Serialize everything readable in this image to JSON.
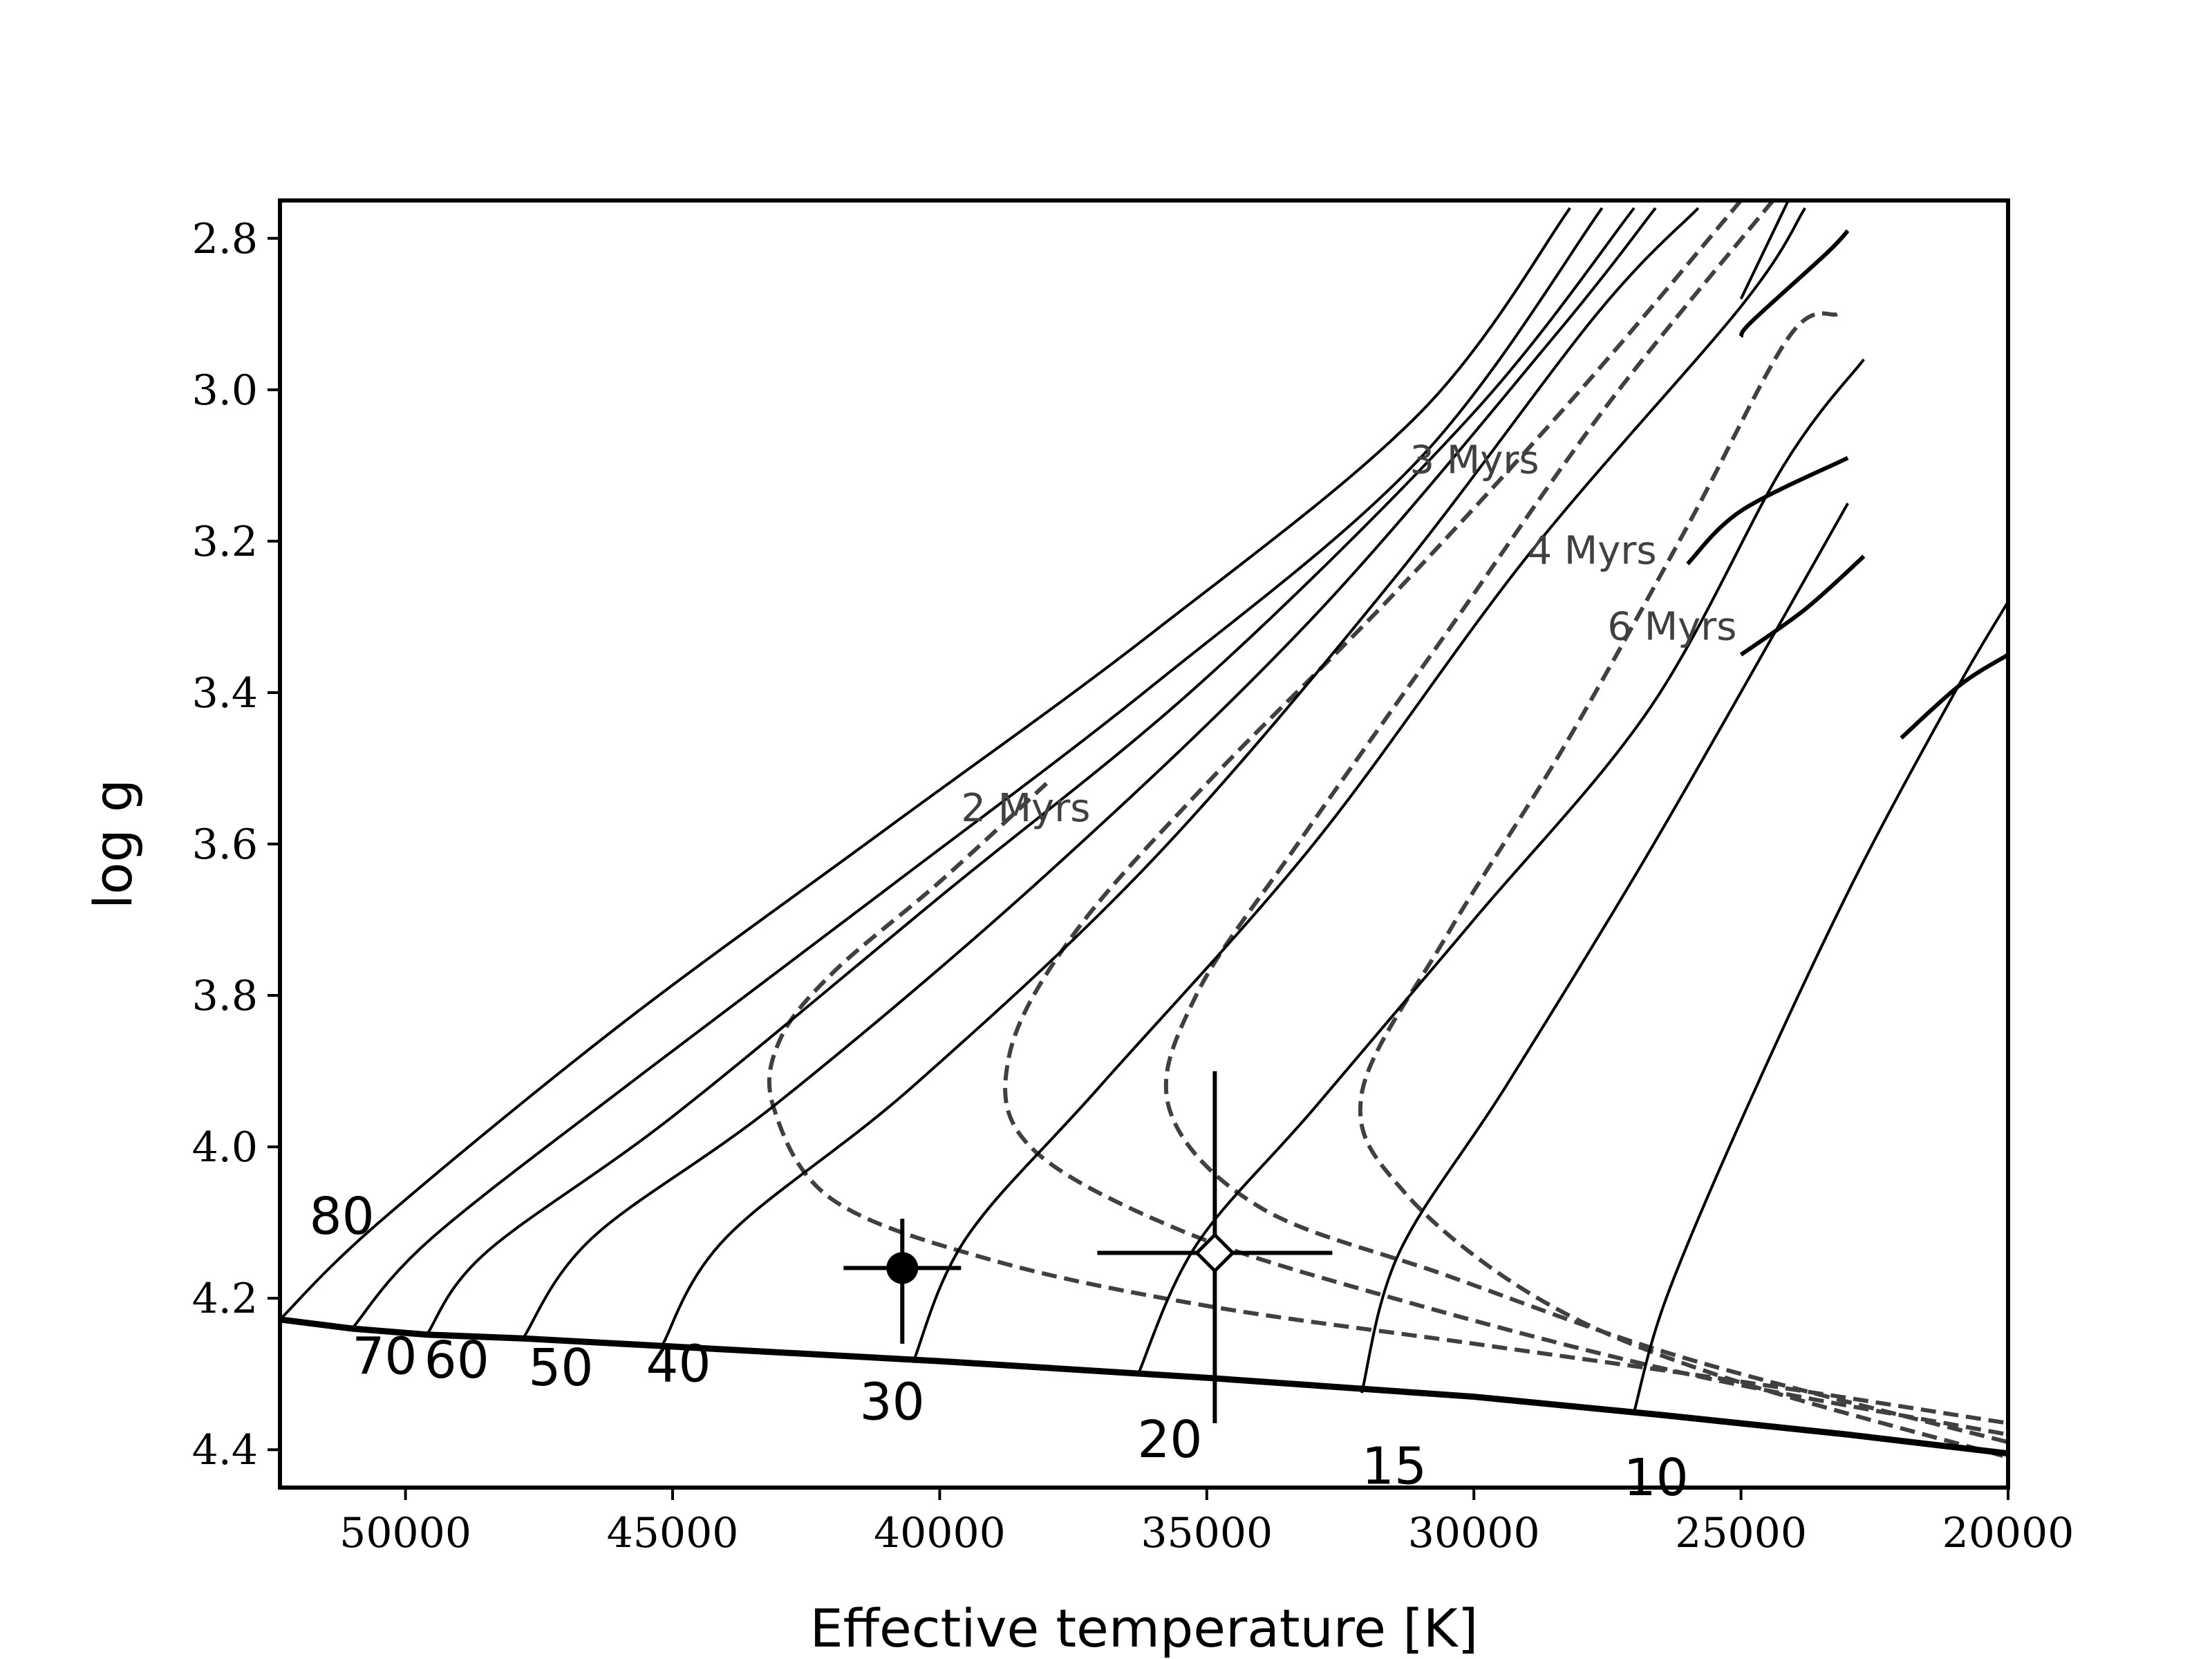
{
  "chart_data": {
    "type": "line",
    "title": "",
    "xlabel": "Effective temperature [K]",
    "ylabel": "log g",
    "xlim": [
      52350,
      20000
    ],
    "ylim": [
      4.45,
      2.75
    ],
    "x_inverted": true,
    "y_inverted": true,
    "grid": false,
    "legend": "none",
    "x_ticks": [
      50000,
      45000,
      40000,
      35000,
      30000,
      25000,
      20000
    ],
    "y_ticks": [
      2.8,
      3.0,
      3.2,
      3.4,
      3.6,
      3.8,
      4.0,
      4.2,
      4.4
    ],
    "x_tick_labels": [
      "50000",
      "45000",
      "40000",
      "35000",
      "30000",
      "25000",
      "20000"
    ],
    "y_tick_labels": [
      "2.8",
      "3.0",
      "3.2",
      "3.4",
      "3.6",
      "3.8",
      "4.0",
      "4.2",
      "4.4"
    ],
    "zams": {
      "points": [
        [
          52350,
          4.228
        ],
        [
          51000,
          4.24
        ],
        [
          49600,
          4.248
        ],
        [
          47800,
          4.253
        ],
        [
          45200,
          4.263
        ],
        [
          40000,
          4.283
        ],
        [
          35000,
          4.305
        ],
        [
          30000,
          4.33
        ],
        [
          26500,
          4.354
        ],
        [
          23000,
          4.38
        ],
        [
          20000,
          4.405
        ]
      ]
    },
    "tracks": [
      {
        "label": "80",
        "label_pos": [
          51800,
          4.115
        ],
        "points": [
          [
            52350,
            4.228
          ],
          [
            50500,
            4.1
          ],
          [
            46000,
            3.84
          ],
          [
            41000,
            3.58
          ],
          [
            36000,
            3.32
          ],
          [
            31000,
            3.03
          ],
          [
            28200,
            2.76
          ]
        ]
      },
      {
        "label": "70",
        "label_pos": [
          51000,
          4.3
        ],
        "points": [
          [
            51000,
            4.24
          ],
          [
            49500,
            4.12
          ],
          [
            45500,
            3.9
          ],
          [
            41000,
            3.66
          ],
          [
            36000,
            3.39
          ],
          [
            31000,
            3.09
          ],
          [
            27600,
            2.76
          ]
        ]
      },
      {
        "label": "60",
        "label_pos": [
          49650,
          4.305
        ],
        "points": [
          [
            49600,
            4.248
          ],
          [
            48500,
            4.14
          ],
          [
            45000,
            3.96
          ],
          [
            40000,
            3.67
          ],
          [
            35000,
            3.38
          ],
          [
            30000,
            3.03
          ],
          [
            27000,
            2.76
          ]
        ]
      },
      {
        "label": "50",
        "label_pos": [
          47700,
          4.315
        ],
        "points": [
          [
            47800,
            4.253
          ],
          [
            46500,
            4.12
          ],
          [
            43000,
            3.94
          ],
          [
            38000,
            3.64
          ],
          [
            33000,
            3.3
          ],
          [
            28500,
            2.93
          ],
          [
            26600,
            2.76
          ]
        ]
      },
      {
        "label": "40",
        "label_pos": [
          45500,
          4.31
        ],
        "points": [
          [
            45200,
            4.263
          ],
          [
            44000,
            4.12
          ],
          [
            40500,
            3.92
          ],
          [
            36000,
            3.62
          ],
          [
            31500,
            3.25
          ],
          [
            27700,
            2.9
          ],
          [
            25800,
            2.76
          ]
        ]
      },
      {
        "label": "30",
        "label_pos": [
          41500,
          4.36
        ],
        "points": [
          [
            40500,
            4.285
          ],
          [
            39500,
            4.12
          ],
          [
            37000,
            3.92
          ],
          [
            33000,
            3.6
          ],
          [
            29000,
            3.22
          ],
          [
            25000,
            2.89
          ],
          [
            23800,
            2.76
          ]
        ]
      },
      {
        "label": "20",
        "label_pos": [
          36300,
          4.41
        ],
        "points": [
          [
            36300,
            4.303
          ],
          [
            35200,
            4.13
          ],
          [
            33000,
            3.95
          ],
          [
            30000,
            3.7
          ],
          [
            26700,
            3.42
          ],
          [
            24200,
            3.1
          ],
          [
            22700,
            2.96
          ]
        ]
      },
      {
        "label": "15",
        "label_pos": [
          32100,
          4.445
        ],
        "points": [
          [
            32100,
            4.325
          ],
          [
            31400,
            4.14
          ],
          [
            29400,
            3.92
          ],
          [
            26800,
            3.62
          ],
          [
            24200,
            3.3
          ],
          [
            23000,
            3.15
          ]
        ]
      },
      {
        "label": "10",
        "label_pos": [
          27200,
          4.46
        ],
        "points": [
          [
            27000,
            4.35
          ],
          [
            26400,
            4.2
          ],
          [
            24900,
            3.95
          ],
          [
            22900,
            3.65
          ],
          [
            21000,
            3.4
          ],
          [
            20000,
            3.28
          ]
        ]
      },
      {
        "label": "",
        "label_pos": null,
        "points": [
          [
            25000,
            2.88
          ],
          [
            23500,
            2.66
          ]
        ]
      }
    ],
    "track_hooks": [
      [
        [
          25000,
          2.93
        ],
        [
          24800,
          2.91
        ],
        [
          23400,
          2.82
        ],
        [
          23000,
          2.79
        ]
      ],
      [
        [
          26000,
          3.23
        ],
        [
          25000,
          3.16
        ],
        [
          23000,
          3.09
        ]
      ],
      [
        [
          25000,
          3.35
        ],
        [
          23800,
          3.29
        ],
        [
          22700,
          3.22
        ]
      ],
      [
        [
          22000,
          3.46
        ],
        [
          20900,
          3.39
        ],
        [
          20000,
          3.35
        ]
      ]
    ],
    "isochrones": [
      {
        "label": "2 Myrs",
        "label_pos": [
          39600,
          3.57
        ],
        "points": [
          [
            38000,
            3.52
          ],
          [
            40000,
            3.65
          ],
          [
            42000,
            3.77
          ],
          [
            43000,
            3.86
          ],
          [
            43100,
            3.95
          ],
          [
            42000,
            4.07
          ],
          [
            39000,
            4.15
          ],
          [
            35000,
            4.21
          ],
          [
            30000,
            4.26
          ],
          [
            25000,
            4.31
          ],
          [
            20000,
            4.365
          ]
        ]
      },
      {
        "label": "3 Myrs",
        "label_pos": [
          31200,
          3.11
        ],
        "points": [
          [
            25000,
            2.75
          ],
          [
            28000,
            3.0
          ],
          [
            31500,
            3.27
          ],
          [
            35000,
            3.52
          ],
          [
            37500,
            3.72
          ],
          [
            38700,
            3.88
          ],
          [
            38300,
            4.0
          ],
          [
            35500,
            4.11
          ],
          [
            31500,
            4.2
          ],
          [
            26000,
            4.3
          ],
          [
            20000,
            4.38
          ]
        ]
      },
      {
        "label": "4 Myrs",
        "label_pos": [
          29000,
          3.23
        ],
        "points": [
          [
            24400,
            2.75
          ],
          [
            27500,
            3.02
          ],
          [
            30500,
            3.32
          ],
          [
            33300,
            3.6
          ],
          [
            35200,
            3.8
          ],
          [
            35700,
            3.95
          ],
          [
            34000,
            4.08
          ],
          [
            30500,
            4.17
          ],
          [
            26000,
            4.28
          ],
          [
            20000,
            4.39
          ]
        ]
      },
      {
        "label": "6 Myrs",
        "label_pos": [
          27500,
          3.33
        ],
        "points": [
          [
            23200,
            2.9
          ],
          [
            24100,
            2.93
          ],
          [
            26000,
            3.18
          ],
          [
            28300,
            3.47
          ],
          [
            30500,
            3.72
          ],
          [
            32100,
            3.93
          ],
          [
            31300,
            4.06
          ],
          [
            28800,
            4.2
          ],
          [
            25500,
            4.3
          ],
          [
            20000,
            4.41
          ]
        ]
      }
    ],
    "data_points": [
      {
        "marker": "filled-circle",
        "x": 40700,
        "y": 4.16,
        "x_err": 1100,
        "y_err_low": 0.1,
        "y_err_high": 0.065
      },
      {
        "marker": "open-diamond",
        "x": 34850,
        "y": 4.14,
        "x_err": 2200,
        "y_err_low": 0.225,
        "y_err_high": 0.24
      }
    ]
  }
}
